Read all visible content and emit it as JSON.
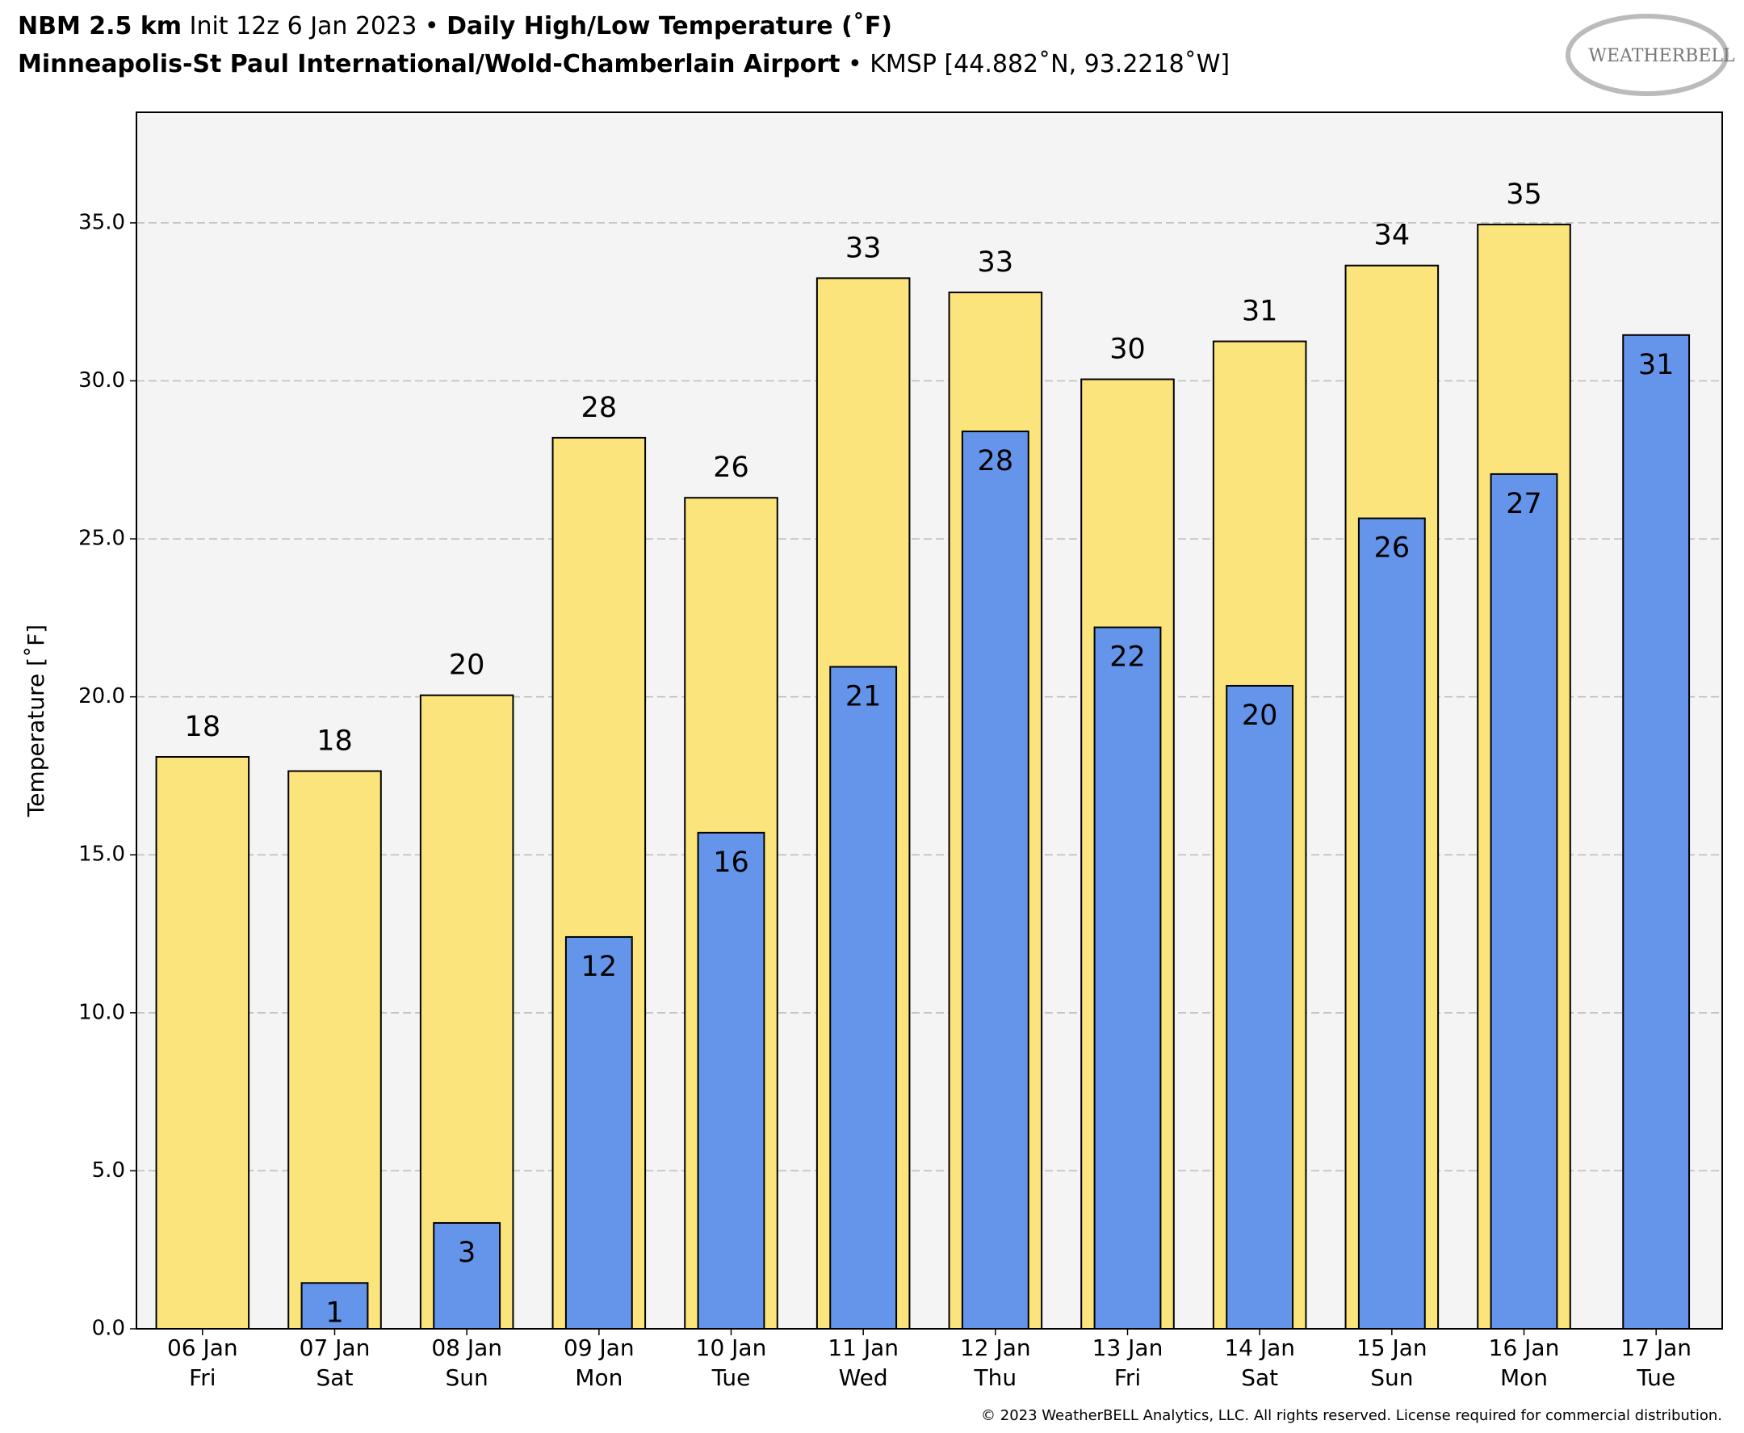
{
  "chart_data": {
    "type": "bar",
    "title": [
      "NBM 2.5 km",
      " Init 12z 6 Jan 2023 • ",
      "Daily High/Low Temperature (˚F)"
    ],
    "subtitle": [
      "Minneapolis-St Paul International/Wold-Chamberlain Airport",
      " • KMSP [44.882˚N, 93.2218˚W]"
    ],
    "logo": "WEATHERBELL",
    "copyright": "© 2023 WeatherBELL Analytics, LLC. All rights reserved. License required for commercial distribution.",
    "ylabel": "Temperature [˚F]",
    "categories": [
      [
        "06 Jan",
        "Fri"
      ],
      [
        "07 Jan",
        "Sat"
      ],
      [
        "08 Jan",
        "Sun"
      ],
      [
        "09 Jan",
        "Mon"
      ],
      [
        "10 Jan",
        "Tue"
      ],
      [
        "11 Jan",
        "Wed"
      ],
      [
        "12 Jan",
        "Thu"
      ],
      [
        "13 Jan",
        "Fri"
      ],
      [
        "14 Jan",
        "Sat"
      ],
      [
        "15 Jan",
        "Sun"
      ],
      [
        "16 Jan",
        "Mon"
      ],
      [
        "17 Jan",
        "Tue"
      ]
    ],
    "series": [
      {
        "color": "#fbe47b",
        "values": [
          18.1,
          17.65,
          20.05,
          28.2,
          26.3,
          33.25,
          32.8,
          30.05,
          31.25,
          33.65,
          34.95,
          null
        ],
        "value_labels": [
          "18",
          "18",
          "20",
          "28",
          "26",
          "33",
          "33",
          "30",
          "31",
          "34",
          "35",
          null
        ]
      },
      {
        "color": "#6495ea",
        "values": [
          null,
          1.45,
          3.35,
          12.4,
          15.7,
          20.95,
          28.4,
          22.2,
          20.35,
          25.65,
          27.05,
          31.45
        ],
        "value_labels": [
          null,
          "1",
          "3",
          "12",
          "16",
          "21",
          "28",
          "22",
          "20",
          "26",
          "27",
          "31"
        ]
      }
    ],
    "ylim": [
      0,
      38.5
    ],
    "yticks": [
      {
        "value": 0,
        "label": "0.0"
      },
      {
        "value": 5,
        "label": "5.0"
      },
      {
        "value": 10,
        "label": "10.0"
      },
      {
        "value": 15,
        "label": "15.0"
      },
      {
        "value": 20,
        "label": "20.0"
      },
      {
        "value": 25,
        "label": "25.0"
      },
      {
        "value": 30,
        "label": "30.0"
      },
      {
        "value": 35,
        "label": "35.0"
      }
    ],
    "grid": true
  }
}
